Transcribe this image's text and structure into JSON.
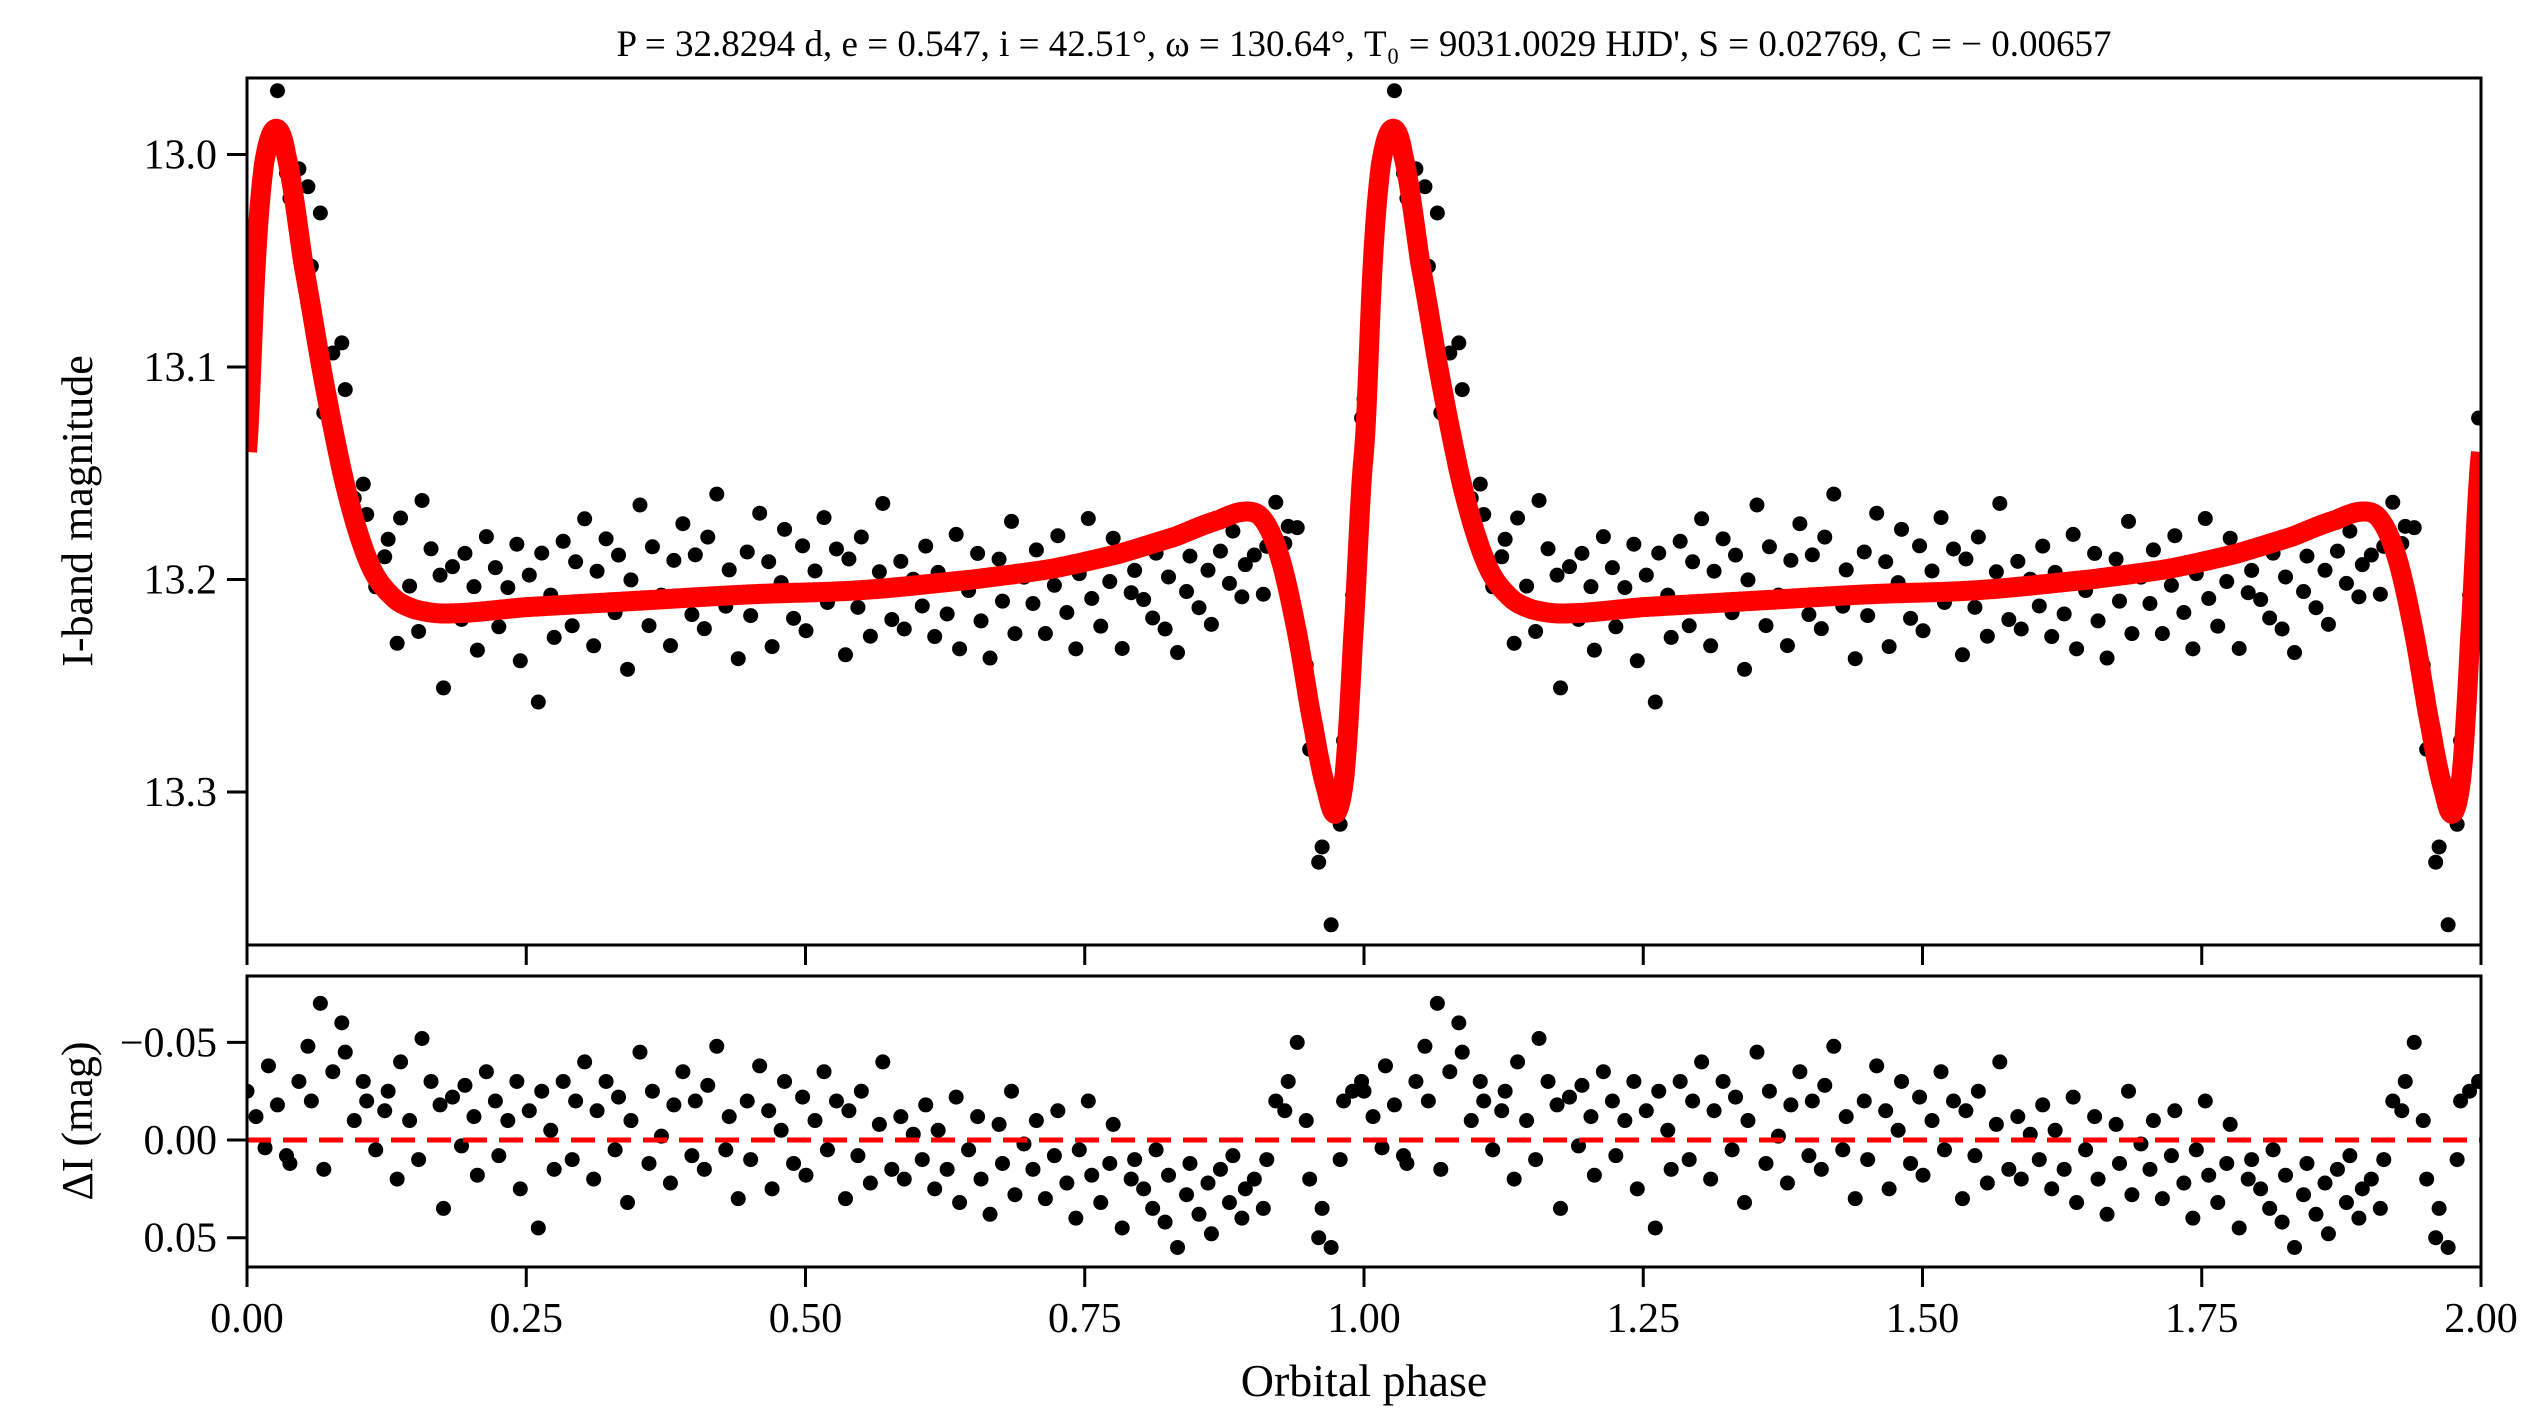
{
  "chart_data": [
    {
      "type": "scatter",
      "panel": "light-curve",
      "title": "P = 32.8294 d, e = 0.547, i = 42.51°, ω = 130.64°, T₀ = 9031.0029 HJD', S = 0.02769, C = − 0.00657",
      "xlabel": "Orbital phase",
      "ylabel": "I-band magnitude",
      "xlim": [
        0,
        2
      ],
      "ylim": [
        13.372,
        12.964
      ],
      "y_inverted": true,
      "yticks": [
        13.0,
        13.1,
        13.2,
        13.3
      ],
      "ytick_labels": [
        "13.0",
        "13.1",
        "13.2",
        "13.3"
      ],
      "xticks": [
        0,
        0.25,
        0.5,
        0.75,
        1.0,
        1.25,
        1.5,
        1.75,
        2.0
      ],
      "model_color": "#ff0000",
      "point_color": "#000000",
      "model": [
        [
          0.0,
          13.14
        ],
        [
          0.008,
          13.05
        ],
        [
          0.015,
          13.005
        ],
        [
          0.025,
          12.988
        ],
        [
          0.035,
          13.0
        ],
        [
          0.05,
          13.05
        ],
        [
          0.07,
          13.11
        ],
        [
          0.09,
          13.16
        ],
        [
          0.11,
          13.193
        ],
        [
          0.13,
          13.208
        ],
        [
          0.15,
          13.214
        ],
        [
          0.18,
          13.216
        ],
        [
          0.25,
          13.213
        ],
        [
          0.35,
          13.21
        ],
        [
          0.45,
          13.207
        ],
        [
          0.55,
          13.205
        ],
        [
          0.65,
          13.2
        ],
        [
          0.72,
          13.195
        ],
        [
          0.78,
          13.188
        ],
        [
          0.83,
          13.18
        ],
        [
          0.87,
          13.172
        ],
        [
          0.895,
          13.168
        ],
        [
          0.91,
          13.172
        ],
        [
          0.925,
          13.19
        ],
        [
          0.94,
          13.225
        ],
        [
          0.955,
          13.27
        ],
        [
          0.967,
          13.3
        ],
        [
          0.975,
          13.31
        ],
        [
          0.983,
          13.29
        ],
        [
          0.99,
          13.23
        ],
        [
          1.0,
          13.14
        ]
      ]
    },
    {
      "type": "scatter",
      "panel": "residuals",
      "xlabel": "Orbital phase",
      "ylabel": "ΔI (mag)",
      "xlim": [
        0,
        2
      ],
      "ylim": [
        0.065,
        -0.084
      ],
      "y_inverted": true,
      "yticks": [
        -0.05,
        0.0,
        0.05
      ],
      "ytick_labels": [
        "−0.05",
        "0.00",
        "0.05"
      ],
      "xticks": [
        0,
        0.25,
        0.5,
        0.75,
        1.0,
        1.25,
        1.5,
        1.75,
        2.0
      ],
      "xtick_labels": [
        "0.00",
        "0.25",
        "0.50",
        "0.75",
        "1.00",
        "1.25",
        "1.50",
        "1.75",
        "2.00"
      ],
      "zero_line_color": "#ff0000",
      "phase_step": 0.00625,
      "residuals": [
        -0.025,
        -0.012,
        0.004,
        -0.038,
        -0.018,
        0.008,
        0.012,
        -0.03,
        -0.048,
        -0.02,
        -0.07,
        0.015,
        -0.035,
        -0.06,
        -0.045,
        -0.01,
        -0.03,
        -0.02,
        0.005,
        -0.015,
        -0.025,
        0.02,
        -0.04,
        -0.01,
        0.01,
        -0.052,
        -0.03,
        -0.018,
        0.035,
        -0.022,
        0.003,
        -0.028,
        -0.012,
        0.018,
        -0.035,
        -0.02,
        0.008,
        -0.01,
        -0.03,
        0.025,
        -0.015,
        0.045,
        -0.025,
        -0.005,
        0.015,
        -0.03,
        0.01,
        -0.02,
        -0.04,
        0.02,
        -0.015,
        -0.03,
        0.005,
        -0.022,
        0.032,
        -0.01,
        -0.045,
        0.012,
        -0.025,
        -0.002,
        0.022,
        -0.018,
        -0.035,
        0.008,
        -0.02,
        0.015,
        -0.028,
        -0.048,
        0.005,
        -0.012,
        0.03,
        -0.02,
        0.01,
        -0.038,
        -0.015,
        0.025,
        -0.005,
        -0.03,
        0.012,
        -0.022,
        0.018,
        -0.01,
        -0.035,
        0.005,
        -0.02,
        0.03,
        -0.015,
        0.008,
        -0.025,
        0.022,
        -0.008,
        -0.04,
        0.015,
        -0.012,
        0.02,
        -0.003,
        0.01,
        -0.018,
        0.025,
        -0.005,
        0.015,
        -0.022,
        0.032,
        0.005,
        -0.012,
        0.02,
        0.038,
        -0.008,
        0.012,
        -0.025,
        0.028,
        0.002,
        0.015,
        -0.01,
        0.03,
        0.008,
        -0.015,
        0.022,
        0.04,
        0.005,
        -0.02,
        0.018,
        0.032,
        0.012,
        -0.008,
        0.045,
        0.02,
        0.01,
        0.025,
        0.035,
        0.005,
        0.042,
        0.018,
        0.055,
        0.028,
        0.012,
        0.038,
        0.022,
        0.048,
        0.015,
        0.032,
        0.008,
        0.04,
        0.025,
        0.02,
        0.035,
        0.01,
        -0.02,
        -0.015,
        -0.03,
        -0.05,
        -0.01,
        0.02,
        0.05,
        0.035,
        0.055,
        0.01,
        -0.02,
        -0.025,
        -0.03
      ]
    }
  ]
}
